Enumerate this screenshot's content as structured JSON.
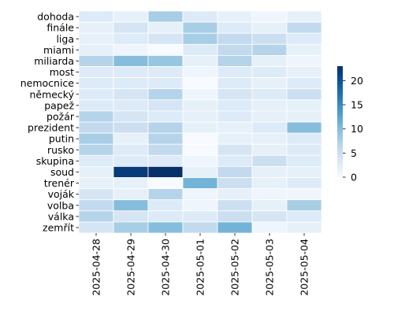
{
  "chart_data": {
    "type": "heatmap",
    "x_labels": [
      "2025-04-28",
      "2025-04-29",
      "2025-04-30",
      "2025-05-01",
      "2025-05-02",
      "2025-05-03",
      "2025-05-04"
    ],
    "y_labels": [
      "dohoda",
      "finále",
      "liga",
      "miami",
      "miliarda",
      "most",
      "nemocnice",
      "německý",
      "papež",
      "požár",
      "prezident",
      "putin",
      "rusko",
      "skupina",
      "soud",
      "trenér",
      "voják",
      "volba",
      "válka",
      "zemřít"
    ],
    "values": [
      [
        3,
        2,
        8,
        3,
        2,
        1,
        2
      ],
      [
        2,
        4,
        2,
        8,
        3,
        2,
        6
      ],
      [
        2,
        3,
        4,
        8,
        6,
        5,
        3
      ],
      [
        2,
        1,
        0,
        3,
        6,
        7,
        2
      ],
      [
        7,
        10,
        9,
        2,
        7,
        2,
        1
      ],
      [
        3,
        3,
        3,
        1,
        3,
        3,
        2
      ],
      [
        3,
        3,
        3,
        0,
        3,
        2,
        3
      ],
      [
        3,
        4,
        7,
        1,
        4,
        3,
        5
      ],
      [
        3,
        3,
        4,
        2,
        3,
        2,
        2
      ],
      [
        7,
        4,
        3,
        2,
        3,
        2,
        2
      ],
      [
        6,
        5,
        7,
        2,
        2,
        3,
        10
      ],
      [
        8,
        2,
        7,
        0,
        2,
        2,
        3
      ],
      [
        7,
        3,
        6,
        0,
        4,
        2,
        3
      ],
      [
        3,
        3,
        3,
        1,
        3,
        5,
        3
      ],
      [
        2,
        22,
        23,
        2,
        6,
        2,
        2
      ],
      [
        2,
        2,
        0,
        11,
        5,
        2,
        3
      ],
      [
        4,
        2,
        7,
        1,
        2,
        1,
        1
      ],
      [
        6,
        10,
        3,
        1,
        5,
        2,
        8
      ],
      [
        7,
        4,
        3,
        3,
        5,
        4,
        3
      ],
      [
        4,
        8,
        10,
        6,
        11,
        1,
        2
      ]
    ],
    "colorbar": {
      "min": 0,
      "max": 23,
      "ticks": [
        0,
        5,
        10,
        15,
        20
      ]
    },
    "colormap": "Blues",
    "colormap_stops": [
      "#f7fbff",
      "#deebf7",
      "#c6dbef",
      "#9ecae1",
      "#6baed6",
      "#4292c6",
      "#2171b5",
      "#08519c",
      "#08306b"
    ],
    "cell_border_color": "#ffffff"
  }
}
